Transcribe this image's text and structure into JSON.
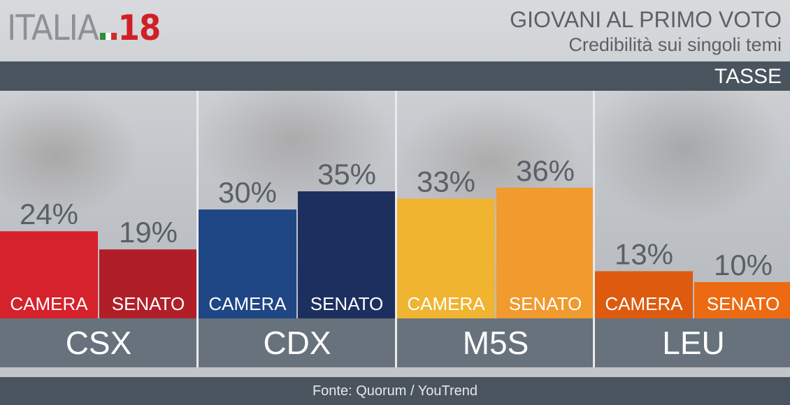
{
  "logo": {
    "text": "ITALIA",
    "number": "18"
  },
  "header": {
    "title": "GIOVANI AL PRIMO VOTO",
    "subtitle": "Credibilità sui singoli temi",
    "topic": "TASSE"
  },
  "footer": {
    "source": "Fonte: Quorum / YouTrend"
  },
  "colors": {
    "CSX": [
      "#d5222c",
      "#b01f28"
    ],
    "CDX": [
      "#1f4685",
      "#1c2f5f"
    ],
    "M5S": [
      "#f0b431",
      "#f19a2d"
    ],
    "LEU": [
      "#dd5a0e",
      "#ec6a12"
    ]
  },
  "chart_data": {
    "type": "bar",
    "title": "GIOVANI AL PRIMO VOTO",
    "subtitle": "Credibilità sui singoli temi",
    "topic": "TASSE",
    "categories": [
      "CSX",
      "CDX",
      "M5S",
      "LEU"
    ],
    "series": [
      {
        "name": "CAMERA",
        "values": [
          24,
          30,
          33,
          13
        ]
      },
      {
        "name": "SENATO",
        "values": [
          19,
          35,
          36,
          10
        ]
      }
    ],
    "value_suffix": "%",
    "ylim": [
      0,
      50
    ],
    "grid": false
  }
}
